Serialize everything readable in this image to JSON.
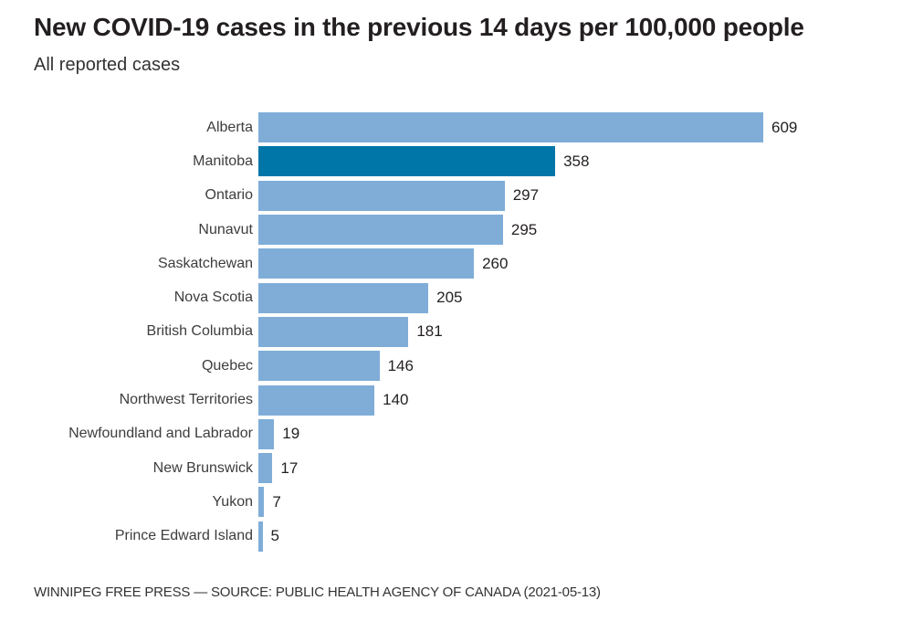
{
  "chart": {
    "title": "New COVID-19 cases in the previous 14 days per 100,000 people",
    "subtitle": "All reported cases",
    "source": "WINNIPEG FREE PRESS — SOURCE: PUBLIC HEALTH AGENCY OF CANADA (2021-05-13)"
  },
  "chart_data": {
    "type": "bar",
    "orientation": "horizontal",
    "categories": [
      "Alberta",
      "Manitoba",
      "Ontario",
      "Nunavut",
      "Saskatchewan",
      "Nova Scotia",
      "British Columbia",
      "Quebec",
      "Northwest Territories",
      "Newfoundland and Labrador",
      "New Brunswick",
      "Yukon",
      "Prince Edward Island"
    ],
    "values": [
      609,
      358,
      297,
      295,
      260,
      205,
      181,
      146,
      140,
      19,
      17,
      7,
      5
    ],
    "highlighted_category": "Manitoba",
    "bar_color": "#7fadd8",
    "highlight_color": "#0076a8",
    "value_label_color": "#231f20",
    "xlim": [
      0,
      609
    ],
    "grid": false,
    "legend": "none",
    "data_labels": "outside-end"
  }
}
